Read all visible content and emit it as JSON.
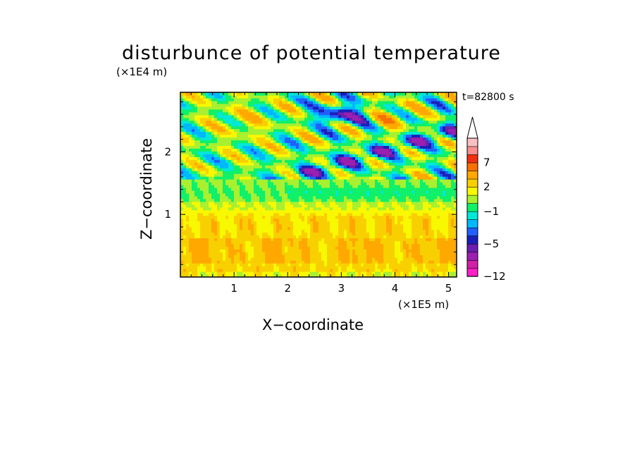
{
  "chart_data": {
    "type": "heatmap",
    "title": "disturbunce of potential temperature",
    "xlabel": "X−coordinate",
    "ylabel": "Z−coordinate",
    "x_unit": "(×1E5 m)",
    "y_unit": "(×1E4 m)",
    "time_label": "t=82800 s",
    "xlim": [
      0,
      5.15
    ],
    "ylim": [
      0,
      2.95
    ],
    "x_ticks": [
      1,
      2,
      3,
      4,
      5
    ],
    "y_ticks": [
      1,
      2
    ],
    "x_tick_labels": [
      "1",
      "2",
      "3",
      "4",
      "5"
    ],
    "y_tick_labels": [
      "1",
      "2"
    ],
    "colorbar": {
      "levels": [
        -12,
        -10,
        -8,
        -6,
        -5,
        -4,
        -3,
        -2,
        -1,
        0,
        1,
        2,
        3,
        5,
        7,
        9,
        11
      ],
      "colors": [
        "#ff1fc4",
        "#d01fa8",
        "#9b1fb0",
        "#6b1fb0",
        "#1a1fb8",
        "#2060ff",
        "#00b8ff",
        "#00e8d8",
        "#10f068",
        "#a8f030",
        "#f8f800",
        "#f8d000",
        "#ffa800",
        "#f87000",
        "#f03010",
        "#f89090",
        "#f8c0c0"
      ],
      "tick_labels": [
        "−12",
        "−5",
        "−1",
        "2",
        "7"
      ],
      "tick_values": [
        -12,
        -5,
        -1,
        2,
        7
      ],
      "extend": "max"
    },
    "grid": false,
    "legend": "colorbar right"
  }
}
